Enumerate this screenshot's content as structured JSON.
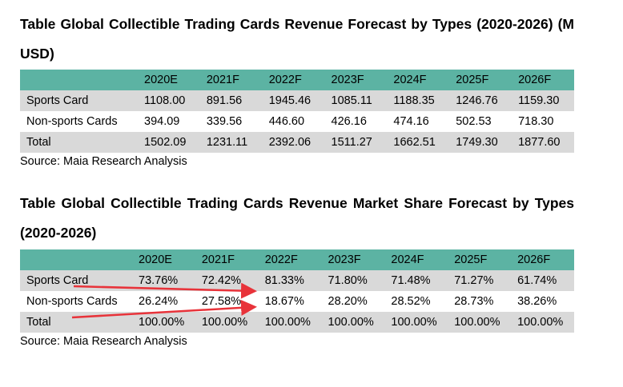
{
  "table1": {
    "title": "Table Global Collectible Trading Cards Revenue Forecast by Types (2020-2026) (M USD)",
    "columns": [
      "",
      "2020E",
      "2021F",
      "2022F",
      "2023F",
      "2024F",
      "2025F",
      "2026F"
    ],
    "rows": [
      [
        "Sports Card",
        "1108.00",
        "891.56",
        "1945.46",
        "1085.11",
        "1188.35",
        "1246.76",
        "1159.30"
      ],
      [
        "Non-sports Cards",
        "394.09",
        "339.56",
        "446.60",
        "426.16",
        "474.16",
        "502.53",
        "718.30"
      ],
      [
        "Total",
        "1502.09",
        "1231.11",
        "2392.06",
        "1511.27",
        "1662.51",
        "1749.30",
        "1877.60"
      ]
    ],
    "source": "Source: Maia Research Analysis"
  },
  "table2": {
    "title": "Table Global Collectible Trading Cards Revenue Market Share Forecast by Types (2020-2026)",
    "columns": [
      "",
      "2020E",
      "2021F",
      "2022F",
      "2023F",
      "2024F",
      "2025F",
      "2026F"
    ],
    "rows": [
      [
        "Sports Card",
        "73.76%",
        "72.42%",
        "81.33%",
        "71.80%",
        "71.48%",
        "71.27%",
        "61.74%"
      ],
      [
        "Non-sports Cards",
        "26.24%",
        "27.58%",
        "18.67%",
        "28.20%",
        "28.52%",
        "28.73%",
        "38.26%"
      ],
      [
        "Total",
        "100.00%",
        "100.00%",
        "100.00%",
        "100.00%",
        "100.00%",
        "100.00%",
        "100.00%"
      ]
    ],
    "source": "Source: Maia Research Analysis"
  },
  "annotation": {
    "arrow_color": "#e8333a"
  }
}
